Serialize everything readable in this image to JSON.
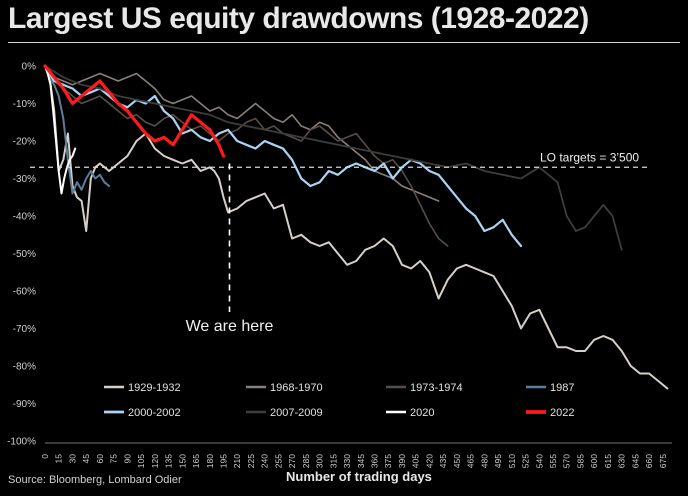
{
  "chart_data": {
    "type": "line",
    "title": "Largest US equity drawdowns (1928-2022)",
    "xlabel": "Number of trading days",
    "ylabel": "",
    "source": "Source: Bloomberg, Lombard Odier",
    "xlim": [
      0,
      685
    ],
    "ylim": [
      -100,
      0
    ],
    "y_ticks": [
      0,
      -10,
      -20,
      -30,
      -40,
      -50,
      -60,
      -70,
      -80,
      -90,
      -100
    ],
    "x_ticks": [
      0,
      15,
      30,
      45,
      60,
      75,
      90,
      105,
      120,
      135,
      150,
      165,
      180,
      195,
      210,
      225,
      240,
      255,
      270,
      285,
      300,
      315,
      330,
      345,
      360,
      375,
      390,
      405,
      420,
      435,
      450,
      465,
      480,
      495,
      510,
      525,
      540,
      555,
      570,
      585,
      600,
      615,
      630,
      645,
      660,
      675
    ],
    "grid": false,
    "legend_position": "bottom",
    "reference_line": {
      "y": -27,
      "label": "LO targets = 3’500"
    },
    "annotation": {
      "text": "We are here",
      "x": 195
    },
    "series": [
      {
        "name": "1929-1932",
        "color": "#d9cfc9",
        "width": 2.0,
        "x": [
          0,
          5,
          10,
          15,
          20,
          25,
          30,
          35,
          40,
          45,
          50,
          55,
          60,
          70,
          80,
          90,
          100,
          110,
          120,
          130,
          140,
          150,
          160,
          170,
          180,
          185,
          190,
          195,
          200,
          210,
          220,
          230,
          240,
          250,
          260,
          270,
          280,
          290,
          300,
          310,
          320,
          330,
          340,
          350,
          360,
          370,
          380,
          390,
          400,
          410,
          420,
          430,
          440,
          450,
          460,
          470,
          480,
          490,
          500,
          510,
          520,
          530,
          540,
          550,
          560,
          570,
          580,
          590,
          600,
          610,
          620,
          630,
          640,
          650,
          660,
          670,
          680
        ],
        "y": [
          0,
          -3,
          -12,
          -28,
          -25,
          -18,
          -32,
          -35,
          -36,
          -44,
          -30,
          -27,
          -26,
          -28,
          -26,
          -24,
          -20,
          -18,
          -22,
          -24,
          -25,
          -26,
          -25,
          -28,
          -27,
          -28,
          -30,
          -35,
          -39,
          -38,
          -36,
          -35,
          -34,
          -38,
          -37,
          -46,
          -45,
          -47,
          -48,
          -47,
          -50,
          -53,
          -52,
          -49,
          -48,
          -46,
          -48,
          -53,
          -54,
          -52,
          -55,
          -62,
          -57,
          -54,
          -53,
          -54,
          -55,
          -56,
          -60,
          -64,
          -70,
          -66,
          -65,
          -70,
          -75,
          -75,
          -76,
          -76,
          -73,
          -72,
          -73,
          -76,
          -80,
          -82,
          -82,
          -84,
          -86
        ]
      },
      {
        "name": "1968-1970",
        "color": "#8a7f78",
        "width": 1.6,
        "x": [
          0,
          10,
          20,
          30,
          40,
          50,
          60,
          70,
          80,
          90,
          100,
          110,
          120,
          130,
          140,
          150,
          160,
          170,
          180,
          190,
          200,
          210,
          220,
          230,
          240,
          250,
          260,
          270,
          280,
          290,
          300,
          310,
          320,
          330,
          340,
          350,
          360,
          370,
          380,
          390,
          400,
          410,
          420,
          430
        ],
        "y": [
          0,
          -3,
          -4,
          -5,
          -4,
          -3,
          -2,
          -3,
          -4,
          -3,
          -2,
          -4,
          -6,
          -9,
          -10,
          -9,
          -8,
          -10,
          -12,
          -11,
          -13,
          -14,
          -12,
          -10,
          -12,
          -14,
          -15,
          -13,
          -16,
          -17,
          -15,
          -16,
          -19,
          -21,
          -23,
          -25,
          -28,
          -29,
          -30,
          -32,
          -33,
          -34,
          -35,
          -36
        ]
      },
      {
        "name": "1973-1974",
        "color": "#5a4d46",
        "width": 1.6,
        "x": [
          0,
          10,
          20,
          30,
          40,
          50,
          60,
          70,
          80,
          90,
          100,
          110,
          120,
          130,
          140,
          150,
          160,
          170,
          180,
          190,
          200,
          210,
          220,
          230,
          240,
          250,
          260,
          270,
          280,
          290,
          300,
          310,
          320,
          330,
          340,
          350,
          360,
          370,
          380,
          390,
          400,
          410,
          420,
          430,
          440
        ],
        "y": [
          0,
          -4,
          -6,
          -8,
          -10,
          -9,
          -8,
          -10,
          -12,
          -14,
          -13,
          -15,
          -16,
          -14,
          -13,
          -15,
          -17,
          -16,
          -18,
          -20,
          -18,
          -17,
          -15,
          -14,
          -17,
          -16,
          -18,
          -19,
          -20,
          -17,
          -16,
          -18,
          -20,
          -19,
          -18,
          -21,
          -24,
          -26,
          -25,
          -28,
          -32,
          -37,
          -42,
          -46,
          -48
        ]
      },
      {
        "name": "1987",
        "color": "#5b7f96",
        "width": 2.0,
        "x": [
          0,
          5,
          10,
          15,
          20,
          25,
          30,
          35,
          40,
          45,
          50,
          55,
          60,
          65,
          70
        ],
        "y": [
          0,
          -3,
          -5,
          -8,
          -14,
          -25,
          -34,
          -31,
          -33,
          -30,
          -28,
          -30,
          -29,
          -31,
          -32
        ]
      },
      {
        "name": "2000-2002",
        "color": "#a8d4f4",
        "width": 2.2,
        "x": [
          0,
          10,
          20,
          30,
          40,
          50,
          60,
          70,
          80,
          90,
          100,
          110,
          120,
          130,
          140,
          150,
          160,
          170,
          180,
          190,
          200,
          210,
          220,
          230,
          240,
          250,
          260,
          270,
          280,
          290,
          300,
          310,
          320,
          330,
          340,
          350,
          360,
          370,
          380,
          390,
          400,
          410,
          420,
          430,
          440,
          450,
          460,
          470,
          480,
          490,
          500,
          510,
          520
        ],
        "y": [
          0,
          -4,
          -5,
          -6,
          -8,
          -7,
          -6,
          -8,
          -10,
          -11,
          -9,
          -10,
          -8,
          -12,
          -14,
          -18,
          -17,
          -19,
          -20,
          -18,
          -17,
          -20,
          -21,
          -22,
          -20,
          -21,
          -22,
          -25,
          -30,
          -32,
          -31,
          -28,
          -29,
          -27,
          -26,
          -27,
          -28,
          -26,
          -30,
          -27,
          -25,
          -26,
          -28,
          -29,
          -32,
          -35,
          -38,
          -40,
          -44,
          -43,
          -41,
          -45,
          -48
        ]
      },
      {
        "name": "2007-2009",
        "color": "#3d3d3d",
        "width": 1.8,
        "x": [
          0,
          20,
          40,
          60,
          80,
          100,
          120,
          140,
          160,
          180,
          200,
          220,
          240,
          260,
          280,
          300,
          320,
          340,
          360,
          380,
          400,
          420,
          440,
          460,
          480,
          500,
          520,
          540,
          560,
          570,
          580,
          590,
          600,
          610,
          620,
          630
        ],
        "y": [
          0,
          -3,
          -5,
          -6,
          -8,
          -9,
          -10,
          -11,
          -12,
          -13,
          -15,
          -16,
          -17,
          -18,
          -19,
          -20,
          -21,
          -22,
          -23,
          -24,
          -25,
          -26,
          -27,
          -26,
          -28,
          -29,
          -30,
          -27,
          -31,
          -40,
          -44,
          -43,
          -40,
          -37,
          -40,
          -49
        ]
      },
      {
        "name": "2020",
        "color": "#ffffff",
        "width": 2.0,
        "x": [
          0,
          3,
          6,
          9,
          12,
          15,
          18,
          21,
          24,
          27,
          30,
          33
        ],
        "y": [
          0,
          -2,
          -5,
          -12,
          -20,
          -28,
          -34,
          -30,
          -27,
          -25,
          -24,
          -22
        ]
      },
      {
        "name": "2022",
        "color": "#ff1a1a",
        "width": 3.2,
        "x": [
          0,
          10,
          20,
          30,
          40,
          50,
          60,
          70,
          80,
          90,
          100,
          110,
          120,
          130,
          140,
          150,
          160,
          170,
          180,
          190,
          195
        ],
        "y": [
          0,
          -3,
          -6,
          -10,
          -8,
          -6,
          -4,
          -7,
          -10,
          -12,
          -15,
          -18,
          -20,
          -19,
          -21,
          -17,
          -13,
          -15,
          -17,
          -21,
          -24
        ]
      }
    ]
  }
}
